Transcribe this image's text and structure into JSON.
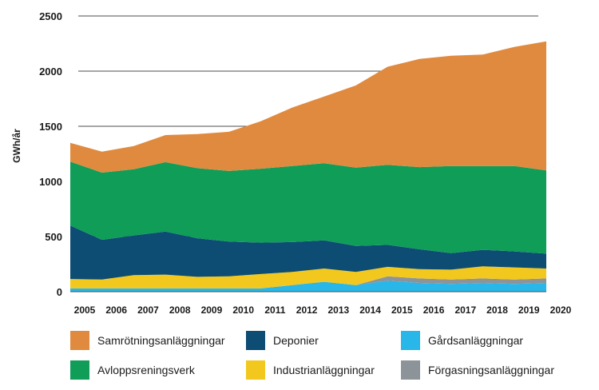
{
  "chart_data": {
    "type": "area",
    "stacked": true,
    "ylabel": "GWh/år",
    "ylim": [
      0,
      2500
    ],
    "yticks": [
      0,
      500,
      1000,
      1500,
      2000,
      2500
    ],
    "grid": true,
    "legend_position": "bottom",
    "x": [
      "2005",
      "2006",
      "2007",
      "2008",
      "2009",
      "2010",
      "2011",
      "2012",
      "2013",
      "2014",
      "2015",
      "2016",
      "2017",
      "2018",
      "2019",
      "2020"
    ],
    "series": [
      {
        "name": "Gårdsanläggningar",
        "color": "#29b6e8",
        "values": [
          30,
          30,
          30,
          30,
          30,
          30,
          30,
          60,
          90,
          60,
          100,
          80,
          70,
          80,
          70,
          80
        ]
      },
      {
        "name": "Förgasningsanläggningar",
        "color": "#8c9499",
        "values": [
          0,
          0,
          0,
          0,
          0,
          0,
          0,
          0,
          0,
          0,
          40,
          40,
          40,
          40,
          40,
          40
        ]
      },
      {
        "name": "Industrianläggningar",
        "color": "#f2c81e",
        "values": [
          85,
          80,
          120,
          125,
          105,
          110,
          130,
          120,
          120,
          120,
          85,
          85,
          90,
          110,
          110,
          90
        ]
      },
      {
        "name": "Deponier",
        "color": "#0d4c73",
        "values": [
          485,
          360,
          360,
          390,
          350,
          315,
          285,
          270,
          255,
          235,
          200,
          180,
          150,
          150,
          145,
          135
        ]
      },
      {
        "name": "Avloppsreningsverk",
        "color": "#0f9d58",
        "values": [
          580,
          610,
          600,
          630,
          635,
          640,
          670,
          690,
          700,
          710,
          725,
          745,
          790,
          760,
          775,
          755
        ]
      },
      {
        "name": "Samrötningsanläggningar",
        "color": "#e08a3f",
        "values": [
          170,
          190,
          210,
          245,
          310,
          355,
          430,
          530,
          605,
          745,
          890,
          980,
          1000,
          1010,
          1080,
          1170
        ]
      }
    ]
  },
  "legend": {
    "items": [
      {
        "label": "Samrötningsanläggningar",
        "color": "#e08a3f"
      },
      {
        "label": "Deponier",
        "color": "#0d4c73"
      },
      {
        "label": "Gårdsanläggningar",
        "color": "#29b6e8"
      },
      {
        "label": "Avloppsreningsverk",
        "color": "#0f9d58"
      },
      {
        "label": "Industrianläggningar",
        "color": "#f2c81e"
      },
      {
        "label": "Förgasningsanläggningar",
        "color": "#8c9499"
      }
    ]
  }
}
